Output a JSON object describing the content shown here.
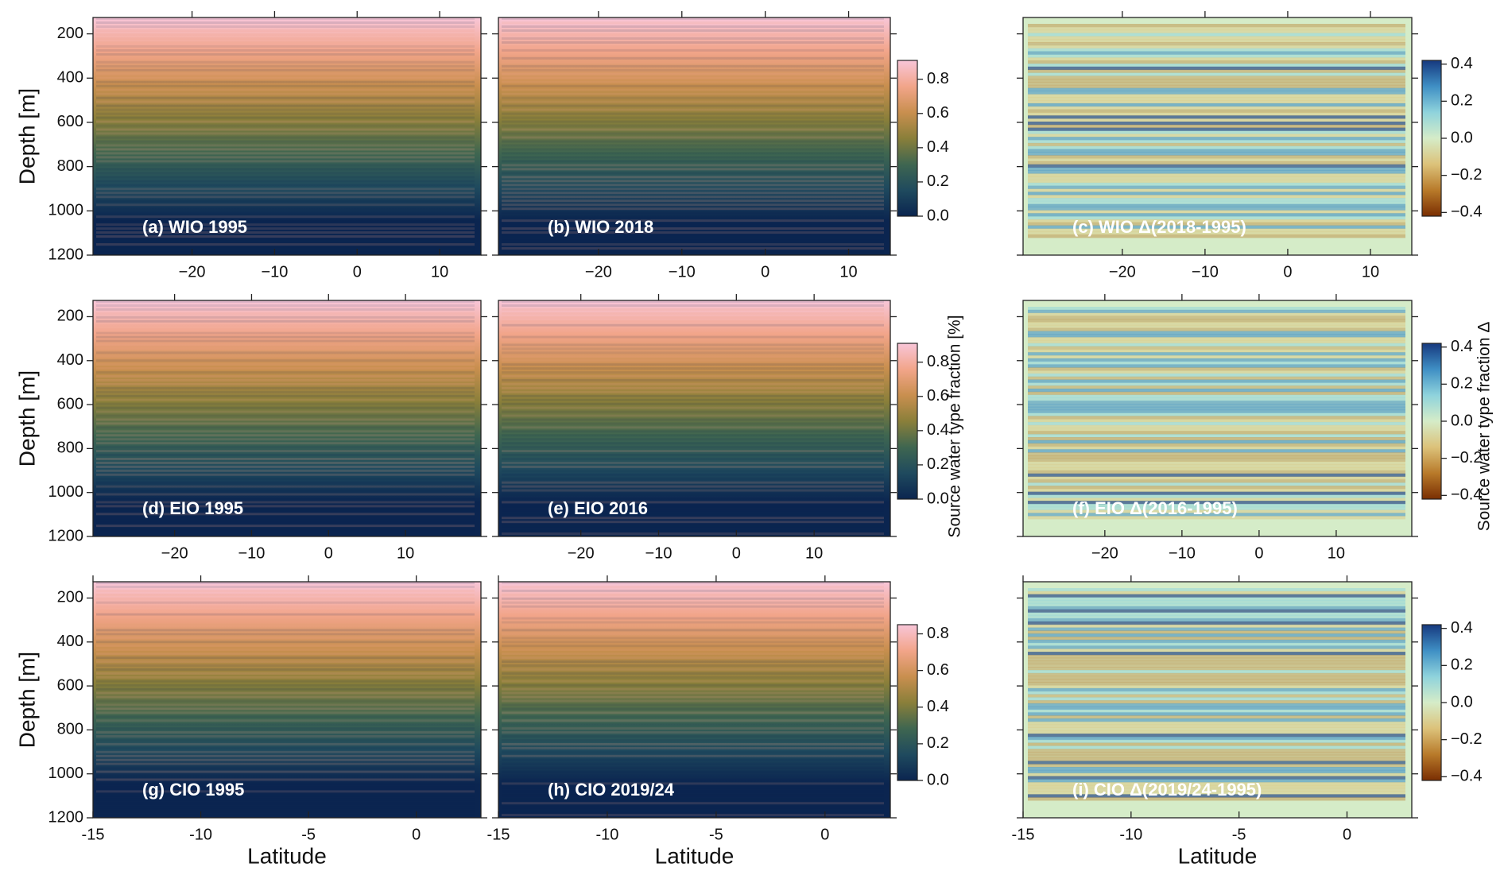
{
  "chart_data": [
    {
      "type": "heatmap",
      "title": "(a) WIO 1995",
      "ylabel": "Depth [m]",
      "xlim": [
        -32,
        15
      ],
      "xticks": [
        {
          "value": -20,
          "label": "−20"
        },
        {
          "value": -10,
          "label": "−10"
        },
        0,
        10
      ],
      "ylim": [
        1200,
        126
      ],
      "yticks": [
        200,
        400,
        600,
        800,
        1000,
        1200
      ]
    },
    {
      "type": "heatmap",
      "title": "(b) WIO 2018",
      "xlim": [
        -32,
        15
      ],
      "xticks": [
        {
          "value": -20,
          "label": "−20"
        },
        {
          "value": -10,
          "label": "−10"
        },
        0,
        10
      ],
      "ylim": [
        1200,
        126
      ],
      "yticks": [
        200,
        400,
        600,
        800,
        1000,
        1200
      ],
      "colorbar": {
        "lim": [
          0,
          0.91
        ],
        "ticks": [
          {
            "value": 0,
            "label": "0.0"
          },
          0.2,
          0.4,
          0.6,
          0.8
        ],
        "colors": [
          "#0b2550",
          "#1f4a5e",
          "#3f6650",
          "#8a7f3a",
          "#c98f4f",
          "#f2a58a",
          "#f8c6d8"
        ]
      }
    },
    {
      "type": "heatmap",
      "title": "(c) WIO Δ(2018-1995)",
      "xlim": [
        -32,
        15
      ],
      "xticks": [
        {
          "value": -20,
          "label": "−20"
        },
        {
          "value": -10,
          "label": "−10"
        },
        0,
        10
      ],
      "ylim": [
        1200,
        126
      ],
      "yticks": [
        200,
        400,
        600,
        800,
        1000,
        1200
      ],
      "colorbar": {
        "lim": [
          -0.42,
          0.42
        ],
        "ticks": [
          {
            "value": -0.4,
            "label": "−0.4"
          },
          {
            "value": -0.2,
            "label": "−0.2"
          },
          {
            "value": 0,
            "label": "0.0"
          },
          0.2,
          0.4
        ],
        "colors": [
          "#7a2e02",
          "#b87a2a",
          "#dcc27a",
          "#d5ecc8",
          "#8fd3dc",
          "#3f8fc4",
          "#16397f"
        ]
      }
    },
    {
      "type": "heatmap",
      "title": "(d) EIO 1995",
      "ylabel": "Depth [m]",
      "xlim": [
        -30.6,
        19.8
      ],
      "xticks": [
        {
          "value": -20,
          "label": "−20"
        },
        {
          "value": -10,
          "label": "−10"
        },
        0,
        10
      ],
      "ylim": [
        1200,
        126
      ],
      "yticks": [
        200,
        400,
        600,
        800,
        1000,
        1200
      ]
    },
    {
      "type": "heatmap",
      "title": "(e) EIO 2016",
      "xlim": [
        -30.6,
        19.8
      ],
      "xticks": [
        {
          "value": -20,
          "label": "−20"
        },
        {
          "value": -10,
          "label": "−10"
        },
        0,
        10
      ],
      "ylim": [
        1200,
        126
      ],
      "yticks": [
        200,
        400,
        600,
        800,
        1000,
        1200
      ],
      "colorbar": {
        "lim": [
          0,
          0.91
        ],
        "ticks": [
          {
            "value": 0,
            "label": "0.0"
          },
          0.2,
          0.4,
          0.6,
          0.8
        ],
        "label": "Source water type fraction [%]",
        "colors": [
          "#0b2550",
          "#1f4a5e",
          "#3f6650",
          "#8a7f3a",
          "#c98f4f",
          "#f2a58a",
          "#f8c6d8"
        ]
      }
    },
    {
      "type": "heatmap",
      "title": "(f) EIO Δ(2016-1995)",
      "xlim": [
        -30.6,
        19.8
      ],
      "xticks": [
        {
          "value": -20,
          "label": "−20"
        },
        {
          "value": -10,
          "label": "−10"
        },
        0,
        10
      ],
      "ylim": [
        1200,
        126
      ],
      "yticks": [
        200,
        400,
        600,
        800,
        1000,
        1200
      ],
      "colorbar": {
        "lim": [
          -0.42,
          0.42
        ],
        "ticks": [
          {
            "value": -0.4,
            "label": "−0.4"
          },
          {
            "value": -0.2,
            "label": "−0.2"
          },
          {
            "value": 0,
            "label": "0.0"
          },
          0.2,
          0.4
        ],
        "label": "Source water type fraction Δ",
        "colors": [
          "#7a2e02",
          "#b87a2a",
          "#dcc27a",
          "#d5ecc8",
          "#8fd3dc",
          "#3f8fc4",
          "#16397f"
        ]
      }
    },
    {
      "type": "heatmap",
      "title": "(g) CIO 1995",
      "ylabel": "Depth [m]",
      "xlabel": "Latitude",
      "xlim": [
        -15,
        3
      ],
      "xticks": [
        -15,
        -10,
        -5,
        0
      ],
      "ylim": [
        1200,
        126
      ],
      "yticks": [
        200,
        400,
        600,
        800,
        1000,
        1200
      ]
    },
    {
      "type": "heatmap",
      "title": "(h) CIO 2019/24",
      "xlabel": "Latitude",
      "xlim": [
        -15,
        3
      ],
      "xticks": [
        -15,
        -10,
        -5,
        0
      ],
      "ylim": [
        1200,
        126
      ],
      "yticks": [
        200,
        400,
        600,
        800,
        1000,
        1200
      ],
      "colorbar": {
        "lim": [
          0,
          0.85
        ],
        "ticks": [
          {
            "value": 0,
            "label": "0.0"
          },
          0.2,
          0.4,
          0.6,
          0.8
        ],
        "colors": [
          "#0b2550",
          "#1f4a5e",
          "#3f6650",
          "#8a7f3a",
          "#c98f4f",
          "#f2a58a",
          "#f8c6d8"
        ]
      }
    },
    {
      "type": "heatmap",
      "title": "(i) CIO Δ(2019/24-1995)",
      "xlabel": "Latitude",
      "xlim": [
        -15,
        3
      ],
      "xticks": [
        -15,
        -10,
        -5,
        0
      ],
      "ylim": [
        1200,
        126
      ],
      "yticks": [
        200,
        400,
        600,
        800,
        1000,
        1200
      ],
      "colorbar": {
        "lim": [
          -0.42,
          0.42
        ],
        "ticks": [
          {
            "value": -0.4,
            "label": "−0.4"
          },
          {
            "value": -0.2,
            "label": "−0.2"
          },
          {
            "value": 0,
            "label": "0.0"
          },
          0.2,
          0.4
        ],
        "colors": [
          "#7a2e02",
          "#b87a2a",
          "#dcc27a",
          "#d5ecc8",
          "#8fd3dc",
          "#3f8fc4",
          "#16397f"
        ]
      }
    }
  ]
}
